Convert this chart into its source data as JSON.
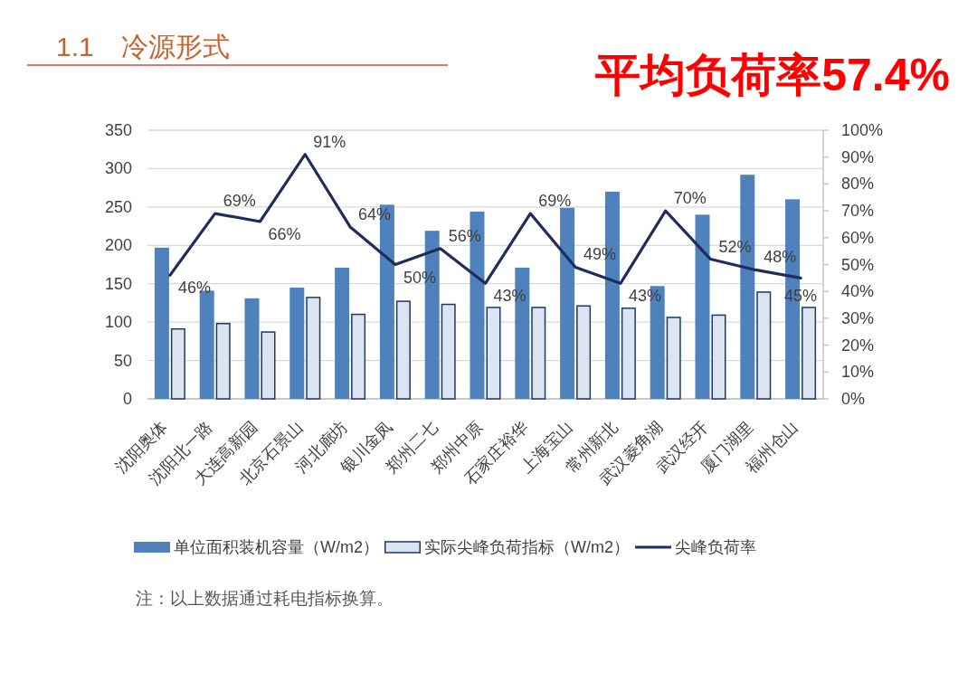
{
  "chart_data": {
    "type": "bar",
    "title": "1.1　冷源形式",
    "categories": [
      "沈阳奥体",
      "沈阳北一路",
      "大连高新园",
      "北京石景山",
      "河北廊坊",
      "银川金凤",
      "郑州二七",
      "郑州中原",
      "石家庄裕华",
      "上海宝山",
      "常州新北",
      "武汉菱角湖",
      "武汉经开",
      "厦门湖里",
      "福州仓山"
    ],
    "series": [
      {
        "name": "单位面积装机容量（W/m2）",
        "color": "#4f81bd",
        "values": [
          197,
          141,
          131,
          145,
          171,
          253,
          219,
          244,
          171,
          249,
          270,
          147,
          240,
          292,
          260
        ]
      },
      {
        "name": "实际尖峰负荷指标（W/m2）",
        "color": "#dbe5f1",
        "values": [
          92,
          99,
          88,
          133,
          111,
          128,
          124,
          120,
          120,
          122,
          119,
          107,
          110,
          140,
          120
        ]
      },
      {
        "name": "尖峰负荷率",
        "type": "line",
        "axis": "y2",
        "color": "#1f2d5c",
        "values": [
          46,
          69,
          66,
          91,
          64,
          50,
          56,
          43,
          69,
          49,
          43,
          70,
          52,
          48,
          45
        ],
        "value_labels": [
          "46%",
          "69%",
          "66%",
          "91%",
          "64%",
          "50%",
          "56%",
          "43%",
          "69%",
          "49%",
          "43%",
          "70%",
          "52%",
          "48%",
          "45%"
        ]
      }
    ],
    "ylim": [
      0,
      350
    ],
    "yticks": [
      0,
      50,
      100,
      150,
      200,
      250,
      300,
      350
    ],
    "y2lim": [
      0,
      100
    ],
    "y2ticks": [
      {
        "value": 0,
        "label": "0%"
      },
      {
        "value": 10,
        "label": "10%"
      },
      {
        "value": 20,
        "label": "20%"
      },
      {
        "value": 30,
        "label": "30%"
      },
      {
        "value": 40,
        "label": "40%"
      },
      {
        "value": 50,
        "label": "50%"
      },
      {
        "value": 60,
        "label": "60%"
      },
      {
        "value": 70,
        "label": "70%"
      },
      {
        "value": 80,
        "label": "80%"
      },
      {
        "value": 90,
        "label": "90%"
      },
      {
        "value": 100,
        "label": "100%"
      }
    ],
    "grid": "y",
    "legend": "bottom",
    "annotations": [
      "平均负荷率57.4%",
      "注：以上数据通过耗电指标换算。"
    ]
  }
}
